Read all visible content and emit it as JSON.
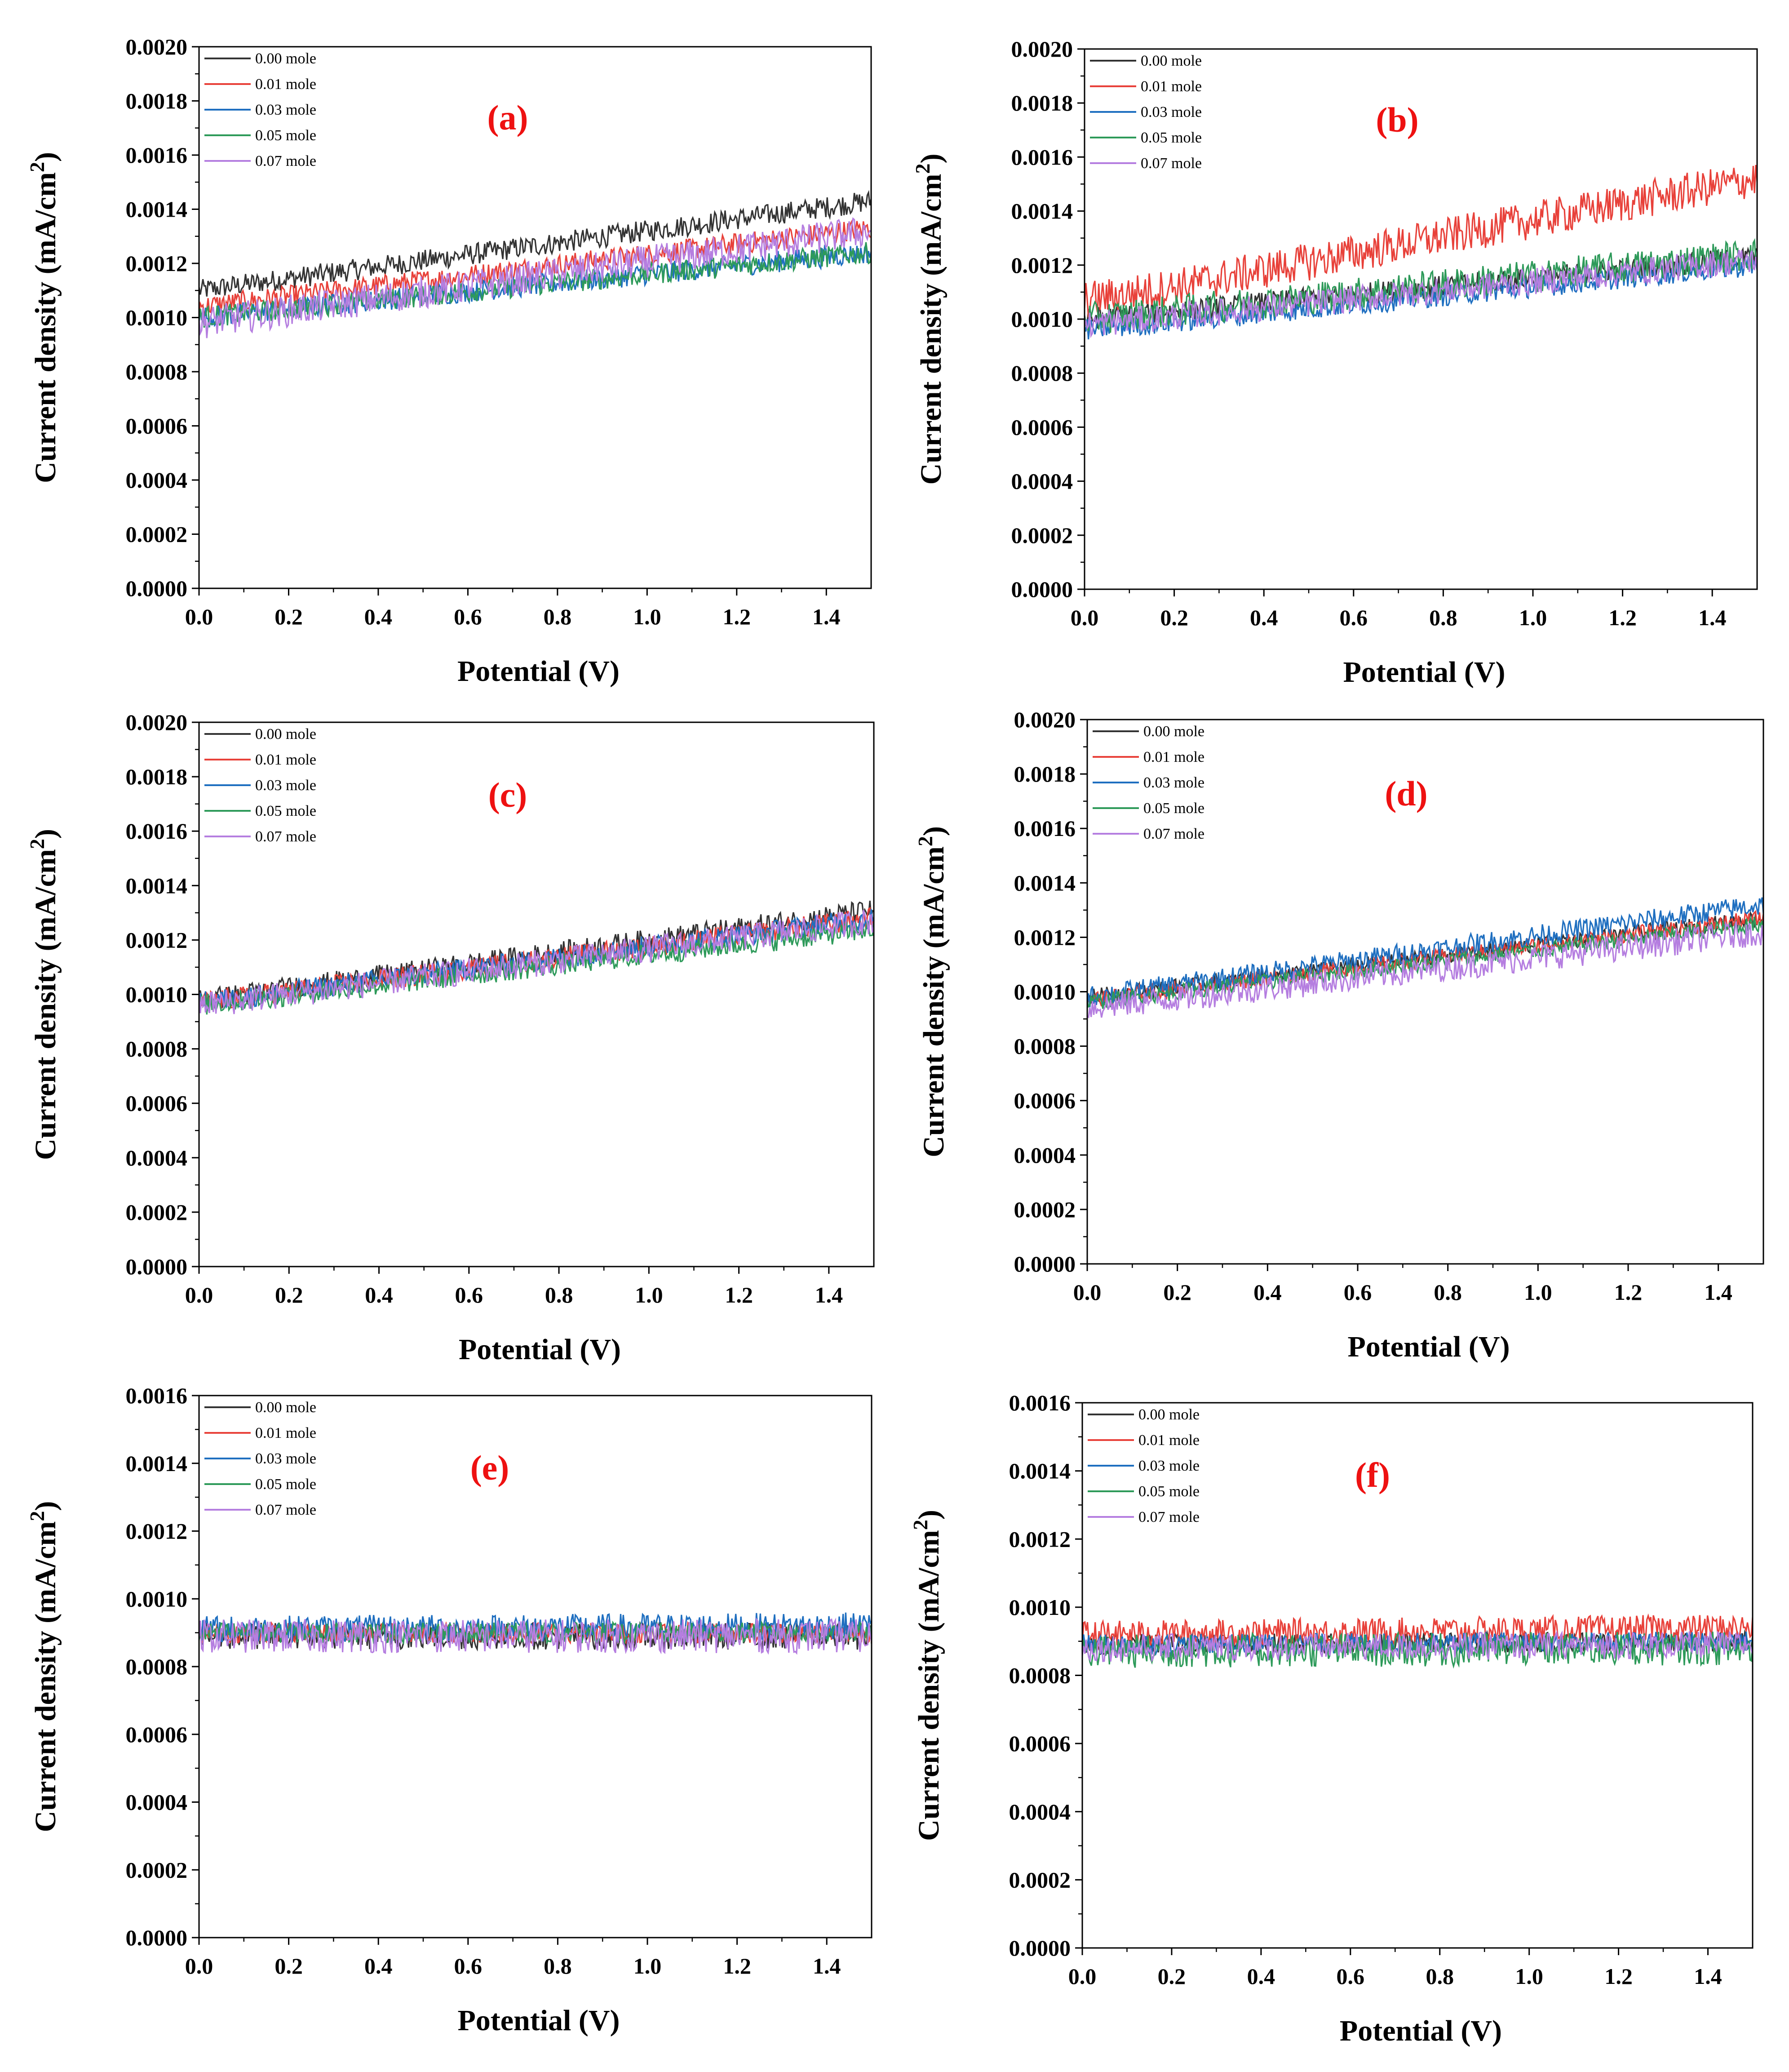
{
  "chart_data": [
    {
      "type": "line",
      "panel_label": "(a)",
      "title": "",
      "xlabel": "Potential (V)",
      "ylabel": "Current density (mA/cm²)",
      "xlim": [
        0,
        1.5
      ],
      "ylim": [
        0,
        0.002
      ],
      "x_ticks": [
        "0.0",
        "0.2",
        "0.4",
        "0.6",
        "0.8",
        "1.0",
        "1.2",
        "1.4"
      ],
      "y_ticks": [
        "0.0000",
        "0.0002",
        "0.0004",
        "0.0006",
        "0.0008",
        "0.0010",
        "0.0012",
        "0.0014",
        "0.0016",
        "0.0018",
        "0.0020"
      ],
      "legend_position": "top-left",
      "x": [
        0,
        1.5
      ],
      "series": [
        {
          "name": "0.00 mole",
          "color": "#333333",
          "values": [
            0.0011,
            0.00143
          ],
          "noise": 4e-05
        },
        {
          "name": "0.01 mole",
          "color": "#e8413a",
          "values": [
            0.00104,
            0.00133
          ],
          "noise": 4e-05
        },
        {
          "name": "0.03 mole",
          "color": "#1f6fc0",
          "values": [
            0.001,
            0.00124
          ],
          "noise": 4e-05
        },
        {
          "name": "0.05 mole",
          "color": "#2e9a5a",
          "values": [
            0.001,
            0.00124
          ],
          "noise": 4e-05
        },
        {
          "name": "0.07 mole",
          "color": "#b57ee0",
          "values": [
            0.00098,
            0.00132
          ],
          "noise": 6e-05
        }
      ]
    },
    {
      "type": "line",
      "panel_label": "(b)",
      "title": "",
      "xlabel": "Potential (V)",
      "ylabel": "Current density (mA/cm²)",
      "xlim": [
        0,
        1.5
      ],
      "ylim": [
        0,
        0.002
      ],
      "x_ticks": [
        "0.0",
        "0.2",
        "0.4",
        "0.6",
        "0.8",
        "1.0",
        "1.2",
        "1.4"
      ],
      "y_ticks": [
        "0.0000",
        "0.0002",
        "0.0004",
        "0.0006",
        "0.0008",
        "0.0010",
        "0.0012",
        "0.0014",
        "0.0016",
        "0.0018",
        "0.0020"
      ],
      "legend_position": "top-left",
      "x": [
        0,
        0.2,
        1.5
      ],
      "series": [
        {
          "name": "0.00 mole",
          "color": "#333333",
          "values": [
            0.001,
            0.00103,
            0.00123
          ],
          "noise": 4e-05
        },
        {
          "name": "0.01 mole",
          "color": "#e8413a",
          "values": [
            0.00107,
            0.00112,
            0.00152
          ],
          "noise": 7e-05
        },
        {
          "name": "0.03 mole",
          "color": "#1f6fc0",
          "values": [
            0.00096,
            0.00099,
            0.0012
          ],
          "noise": 4e-05
        },
        {
          "name": "0.05 mole",
          "color": "#2e9a5a",
          "values": [
            0.001,
            0.00103,
            0.00124
          ],
          "noise": 6e-05
        },
        {
          "name": "0.07 mole",
          "color": "#b57ee0",
          "values": [
            0.00098,
            0.00101,
            0.00122
          ],
          "noise": 5e-05
        }
      ]
    },
    {
      "type": "line",
      "panel_label": "(c)",
      "title": "",
      "xlabel": "Potential (V)",
      "ylabel": "Current density (mA/cm²)",
      "xlim": [
        0,
        1.5
      ],
      "ylim": [
        0,
        0.002
      ],
      "x_ticks": [
        "0.0",
        "0.2",
        "0.4",
        "0.6",
        "0.8",
        "1.0",
        "1.2",
        "1.4"
      ],
      "y_ticks": [
        "0.0000",
        "0.0002",
        "0.0004",
        "0.0006",
        "0.0008",
        "0.0010",
        "0.0012",
        "0.0014",
        "0.0016",
        "0.0018",
        "0.0020"
      ],
      "legend_position": "top-left",
      "x": [
        0,
        1.5
      ],
      "series": [
        {
          "name": "0.00 mole",
          "color": "#333333",
          "values": [
            0.00098,
            0.00131
          ],
          "noise": 4e-05
        },
        {
          "name": "0.01 mole",
          "color": "#e8413a",
          "values": [
            0.00097,
            0.00128
          ],
          "noise": 4e-05
        },
        {
          "name": "0.03 mole",
          "color": "#1f6fc0",
          "values": [
            0.00097,
            0.00128
          ],
          "noise": 4e-05
        },
        {
          "name": "0.05 mole",
          "color": "#2e9a5a",
          "values": [
            0.00096,
            0.00124
          ],
          "noise": 4e-05
        },
        {
          "name": "0.07 mole",
          "color": "#b57ee0",
          "values": [
            0.00096,
            0.00127
          ],
          "noise": 5e-05
        }
      ]
    },
    {
      "type": "line",
      "panel_label": "(d)",
      "title": "",
      "xlabel": "Potential (V)",
      "ylabel": "Current density (mA/cm²)",
      "xlim": [
        0,
        1.5
      ],
      "ylim": [
        0,
        0.002
      ],
      "x_ticks": [
        "0.0",
        "0.2",
        "0.4",
        "0.6",
        "0.8",
        "1.0",
        "1.2",
        "1.4"
      ],
      "y_ticks": [
        "0.0000",
        "0.0002",
        "0.0004",
        "0.0006",
        "0.0008",
        "0.0010",
        "0.0012",
        "0.0014",
        "0.0016",
        "0.0018",
        "0.0020"
      ],
      "legend_position": "top-left",
      "x": [
        0,
        1.5
      ],
      "series": [
        {
          "name": "0.00 mole",
          "color": "#333333",
          "values": [
            0.00098,
            0.00127
          ],
          "noise": 3e-05
        },
        {
          "name": "0.01 mole",
          "color": "#e8413a",
          "values": [
            0.00097,
            0.00127
          ],
          "noise": 3e-05
        },
        {
          "name": "0.03 mole",
          "color": "#1f6fc0",
          "values": [
            0.00098,
            0.00132
          ],
          "noise": 4e-05
        },
        {
          "name": "0.05 mole",
          "color": "#2e9a5a",
          "values": [
            0.00096,
            0.00125
          ],
          "noise": 3e-05
        },
        {
          "name": "0.07 mole",
          "color": "#b57ee0",
          "values": [
            0.00094,
            0.00122
          ],
          "noise": 5e-05
        }
      ]
    },
    {
      "type": "line",
      "panel_label": "(e)",
      "title": "",
      "xlabel": "Potential (V)",
      "ylabel": "Current density (mA/cm²)",
      "xlim": [
        0,
        1.5
      ],
      "ylim": [
        0,
        0.0016
      ],
      "x_ticks": [
        "0.0",
        "0.2",
        "0.4",
        "0.6",
        "0.8",
        "1.0",
        "1.2",
        "1.4"
      ],
      "y_ticks": [
        "0.0000",
        "0.0002",
        "0.0004",
        "0.0006",
        "0.0008",
        "0.0010",
        "0.0012",
        "0.0014",
        "0.0016"
      ],
      "legend_position": "top-left",
      "x": [
        0,
        1.5
      ],
      "series": [
        {
          "name": "0.00 mole",
          "color": "#333333",
          "values": [
            0.00089,
            0.00089
          ],
          "noise": 4e-05
        },
        {
          "name": "0.01 mole",
          "color": "#e8413a",
          "values": [
            0.0009,
            0.0009
          ],
          "noise": 3e-05
        },
        {
          "name": "0.03 mole",
          "color": "#1f6fc0",
          "values": [
            0.00091,
            0.00092
          ],
          "noise": 4e-05
        },
        {
          "name": "0.05 mole",
          "color": "#2e9a5a",
          "values": [
            0.0009,
            0.0009
          ],
          "noise": 3e-05
        },
        {
          "name": "0.07 mole",
          "color": "#b57ee0",
          "values": [
            0.00089,
            0.00089
          ],
          "noise": 5e-05
        }
      ]
    },
    {
      "type": "line",
      "panel_label": "(f)",
      "title": "",
      "xlabel": "Potential (V)",
      "ylabel": "Current density (mA/cm²)",
      "xlim": [
        0,
        1.5
      ],
      "ylim": [
        0,
        0.0016
      ],
      "x_ticks": [
        "0.0",
        "0.2",
        "0.4",
        "0.6",
        "0.8",
        "1.0",
        "1.2",
        "1.4"
      ],
      "y_ticks": [
        "0.0000",
        "0.0002",
        "0.0004",
        "0.0006",
        "0.0008",
        "0.0010",
        "0.0012",
        "0.0014",
        "0.0016"
      ],
      "legend_position": "top-left",
      "x": [
        0,
        1.5
      ],
      "series": [
        {
          "name": "0.00 mole",
          "color": "#333333",
          "values": [
            0.00089,
            0.0009
          ],
          "noise": 3e-05
        },
        {
          "name": "0.01 mole",
          "color": "#e8413a",
          "values": [
            0.00092,
            0.00094
          ],
          "noise": 4e-05
        },
        {
          "name": "0.03 mole",
          "color": "#1f6fc0",
          "values": [
            0.00089,
            0.0009
          ],
          "noise": 3e-05
        },
        {
          "name": "0.05 mole",
          "color": "#2e9a5a",
          "values": [
            0.00087,
            0.00088
          ],
          "noise": 5e-05
        },
        {
          "name": "0.07 mole",
          "color": "#b57ee0",
          "values": [
            0.00088,
            0.00089
          ],
          "noise": 4e-05
        }
      ]
    }
  ]
}
